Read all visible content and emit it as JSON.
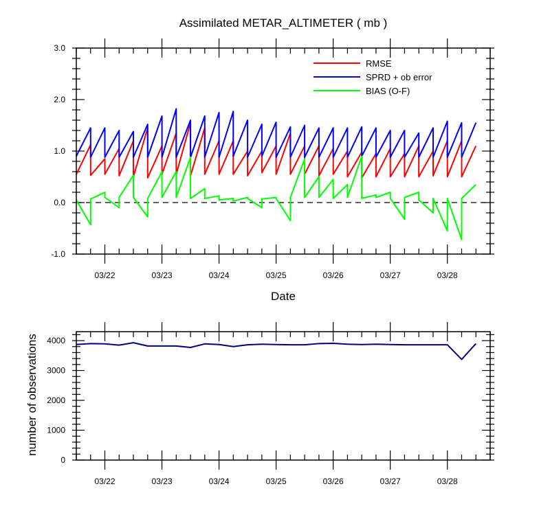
{
  "chart_data": [
    {
      "type": "line",
      "title": "Assimilated METAR_ALTIMETER ( mb )",
      "xlabel": "Date",
      "ylabel": "",
      "x_tick_labels": [
        "03/22",
        "03/23",
        "03/24",
        "03/25",
        "03/26",
        "03/27",
        "03/28"
      ],
      "y_tick_labels": [
        "-1.0",
        "0.0",
        "1.0",
        "2.0",
        "3.0"
      ],
      "ylim": [
        -1,
        3
      ],
      "xlim_days": [
        0,
        7.25
      ],
      "x_units": "days since 03/21 12:00",
      "legend_position": "top-right",
      "series": [
        {
          "name": "RMSE",
          "color": "#ff0000",
          "points": [
            [
              0,
              0.55
            ],
            [
              0.25,
              1.12
            ],
            [
              0.25,
              0.53
            ],
            [
              0.5,
              0.85
            ],
            [
              0.5,
              0.55
            ],
            [
              0.75,
              1.05
            ],
            [
              0.75,
              0.52
            ],
            [
              1.0,
              1.2
            ],
            [
              1.0,
              0.5
            ],
            [
              1.25,
              1.45
            ],
            [
              1.25,
              0.48
            ],
            [
              1.5,
              1.1
            ],
            [
              1.5,
              0.55
            ],
            [
              1.75,
              1.35
            ],
            [
              1.75,
              0.55
            ],
            [
              2.0,
              1.55
            ],
            [
              2.0,
              0.52
            ],
            [
              2.25,
              1.45
            ],
            [
              2.25,
              0.55
            ],
            [
              2.5,
              1.2
            ],
            [
              2.5,
              0.55
            ],
            [
              2.75,
              1.2
            ],
            [
              2.75,
              0.55
            ],
            [
              3.0,
              1.0
            ],
            [
              3.0,
              0.52
            ],
            [
              3.25,
              1.0
            ],
            [
              3.25,
              0.58
            ],
            [
              3.5,
              1.1
            ],
            [
              3.5,
              0.55
            ],
            [
              3.75,
              1.35
            ],
            [
              3.75,
              0.55
            ],
            [
              4.0,
              1.1
            ],
            [
              4.0,
              0.55
            ],
            [
              4.25,
              1.1
            ],
            [
              4.25,
              0.52
            ],
            [
              4.5,
              1.05
            ],
            [
              4.5,
              0.55
            ],
            [
              4.75,
              1.0
            ],
            [
              4.75,
              0.5
            ],
            [
              5.0,
              0.98
            ],
            [
              5.0,
              0.48
            ],
            [
              5.25,
              0.95
            ],
            [
              5.25,
              0.5
            ],
            [
              5.5,
              1.05
            ],
            [
              5.5,
              0.5
            ],
            [
              5.75,
              0.95
            ],
            [
              5.75,
              0.5
            ],
            [
              6.0,
              1.1
            ],
            [
              6.0,
              0.5
            ],
            [
              6.25,
              1.0
            ],
            [
              6.25,
              0.52
            ],
            [
              6.5,
              1.2
            ],
            [
              6.5,
              0.5
            ],
            [
              6.75,
              1.2
            ],
            [
              6.75,
              0.5
            ],
            [
              7.0,
              1.1
            ]
          ]
        },
        {
          "name": "SPRD + ob error",
          "color": "#0000ff",
          "points": [
            [
              0,
              0.9
            ],
            [
              0.25,
              1.45
            ],
            [
              0.25,
              0.88
            ],
            [
              0.5,
              1.45
            ],
            [
              0.5,
              0.88
            ],
            [
              0.75,
              1.4
            ],
            [
              0.75,
              0.88
            ],
            [
              1.0,
              1.38
            ],
            [
              1.0,
              0.88
            ],
            [
              1.25,
              1.52
            ],
            [
              1.25,
              0.88
            ],
            [
              1.5,
              1.68
            ],
            [
              1.5,
              0.88
            ],
            [
              1.75,
              1.82
            ],
            [
              1.75,
              0.88
            ],
            [
              2.0,
              1.6
            ],
            [
              2.0,
              0.88
            ],
            [
              2.25,
              1.68
            ],
            [
              2.25,
              0.88
            ],
            [
              2.5,
              1.75
            ],
            [
              2.5,
              0.88
            ],
            [
              2.75,
              1.77
            ],
            [
              2.75,
              0.9
            ],
            [
              3.0,
              1.6
            ],
            [
              3.0,
              0.88
            ],
            [
              3.25,
              1.52
            ],
            [
              3.25,
              0.9
            ],
            [
              3.5,
              1.56
            ],
            [
              3.5,
              0.88
            ],
            [
              3.75,
              1.47
            ],
            [
              3.75,
              0.88
            ],
            [
              4.0,
              1.5
            ],
            [
              4.0,
              0.88
            ],
            [
              4.25,
              1.45
            ],
            [
              4.25,
              0.88
            ],
            [
              4.5,
              1.45
            ],
            [
              4.5,
              0.88
            ],
            [
              4.75,
              1.45
            ],
            [
              4.75,
              0.88
            ],
            [
              5.0,
              1.47
            ],
            [
              5.0,
              0.9
            ],
            [
              5.25,
              1.45
            ],
            [
              5.25,
              0.88
            ],
            [
              5.5,
              1.4
            ],
            [
              5.5,
              0.88
            ],
            [
              5.75,
              1.4
            ],
            [
              5.75,
              0.88
            ],
            [
              6.0,
              1.35
            ],
            [
              6.0,
              0.88
            ],
            [
              6.25,
              1.45
            ],
            [
              6.25,
              0.88
            ],
            [
              6.5,
              1.58
            ],
            [
              6.5,
              0.88
            ],
            [
              6.75,
              1.55
            ],
            [
              6.75,
              0.88
            ],
            [
              7.0,
              1.55
            ]
          ]
        },
        {
          "name": "BIAS (O-F)",
          "color": "#00ff00",
          "points": [
            [
              0,
              0.05
            ],
            [
              0.25,
              -0.43
            ],
            [
              0.25,
              0.07
            ],
            [
              0.5,
              0.2
            ],
            [
              0.5,
              0.1
            ],
            [
              0.75,
              -0.1
            ],
            [
              0.75,
              0.1
            ],
            [
              1.0,
              0.53
            ],
            [
              1.0,
              0.1
            ],
            [
              1.25,
              -0.28
            ],
            [
              1.25,
              0.08
            ],
            [
              1.5,
              0.6
            ],
            [
              1.5,
              0.1
            ],
            [
              1.75,
              0.6
            ],
            [
              1.75,
              0.1
            ],
            [
              2.0,
              0.88
            ],
            [
              2.0,
              0.08
            ],
            [
              2.25,
              0.27
            ],
            [
              2.25,
              0.08
            ],
            [
              2.5,
              0.13
            ],
            [
              2.5,
              0.05
            ],
            [
              2.75,
              0.08
            ],
            [
              2.75,
              0.03
            ],
            [
              3.0,
              0.1
            ],
            [
              3.0,
              0.08
            ],
            [
              3.25,
              -0.1
            ],
            [
              3.25,
              0.07
            ],
            [
              3.5,
              0.1
            ],
            [
              3.5,
              0.08
            ],
            [
              3.75,
              -0.35
            ],
            [
              3.75,
              0.1
            ],
            [
              4.0,
              0.85
            ],
            [
              4.0,
              0.1
            ],
            [
              4.25,
              0.5
            ],
            [
              4.25,
              0.1
            ],
            [
              4.5,
              0.45
            ],
            [
              4.5,
              0.08
            ],
            [
              4.75,
              0.35
            ],
            [
              4.75,
              0.1
            ],
            [
              5.0,
              0.9
            ],
            [
              5.0,
              0.08
            ],
            [
              5.25,
              0.15
            ],
            [
              5.25,
              0.1
            ],
            [
              5.5,
              0.2
            ],
            [
              5.5,
              0.08
            ],
            [
              5.75,
              -0.32
            ],
            [
              5.75,
              0.1
            ],
            [
              6.0,
              0.2
            ],
            [
              6.0,
              0.05
            ],
            [
              6.25,
              -0.2
            ],
            [
              6.25,
              0.08
            ],
            [
              6.5,
              -0.55
            ],
            [
              6.5,
              0.08
            ],
            [
              6.75,
              -0.72
            ],
            [
              6.75,
              0.08
            ],
            [
              7.0,
              0.35
            ]
          ]
        }
      ],
      "reference_line": {
        "y": 0,
        "style": "dashed"
      }
    },
    {
      "type": "line",
      "title": "",
      "xlabel": "",
      "ylabel": "number of observations",
      "x_tick_labels": [
        "03/22",
        "03/23",
        "03/24",
        "03/25",
        "03/26",
        "03/27",
        "03/28"
      ],
      "y_tick_labels": [
        "0",
        "1000",
        "2000",
        "3000",
        "4000"
      ],
      "ylim": [
        0,
        4300
      ],
      "xlim_days": [
        0,
        7.25
      ],
      "x_units": "days since 03/21 12:00",
      "series": [
        {
          "color": "#000080",
          "points": [
            [
              0,
              3870
            ],
            [
              0.25,
              3900
            ],
            [
              0.5,
              3890
            ],
            [
              0.75,
              3850
            ],
            [
              1.0,
              3930
            ],
            [
              1.25,
              3820
            ],
            [
              1.5,
              3820
            ],
            [
              1.75,
              3820
            ],
            [
              2.0,
              3770
            ],
            [
              2.25,
              3890
            ],
            [
              2.5,
              3870
            ],
            [
              2.75,
              3800
            ],
            [
              3.0,
              3860
            ],
            [
              3.25,
              3880
            ],
            [
              3.5,
              3870
            ],
            [
              3.75,
              3860
            ],
            [
              4.0,
              3860
            ],
            [
              4.25,
              3900
            ],
            [
              4.5,
              3910
            ],
            [
              4.75,
              3880
            ],
            [
              5.0,
              3870
            ],
            [
              5.25,
              3880
            ],
            [
              5.5,
              3870
            ],
            [
              5.75,
              3860
            ],
            [
              6.0,
              3860
            ],
            [
              6.25,
              3860
            ],
            [
              6.5,
              3860
            ],
            [
              6.75,
              3370
            ],
            [
              7.0,
              3900
            ]
          ]
        }
      ]
    }
  ]
}
